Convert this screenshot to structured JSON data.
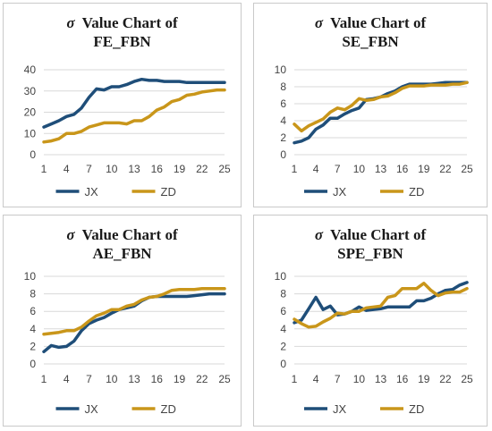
{
  "colors": {
    "JX": "#1f4e79",
    "ZD": "#c9961a",
    "grid": "#d9d9d9"
  },
  "chart_data": [
    {
      "type": "line",
      "title_prefix": "σ",
      "title_line1": "Value Chart of",
      "title_line2": "FE_FBN",
      "x_ticks": [
        "1",
        "4",
        "7",
        "10",
        "13",
        "16",
        "19",
        "22",
        "25"
      ],
      "y_ticks": [
        "0",
        "10",
        "20",
        "30",
        "40"
      ],
      "ylim": [
        0,
        40
      ],
      "xlim": [
        1,
        25
      ],
      "series": [
        {
          "name": "JX",
          "x": [
            1,
            2,
            3,
            4,
            5,
            6,
            7,
            8,
            9,
            10,
            11,
            12,
            13,
            14,
            15,
            16,
            17,
            18,
            19,
            20,
            21,
            22,
            23,
            24,
            25
          ],
          "values": [
            13,
            14.5,
            16,
            18,
            19,
            22,
            27,
            31,
            30.5,
            32,
            32,
            33,
            34.5,
            35.5,
            35,
            35,
            34.5,
            34.5,
            34.5,
            34,
            34,
            34,
            34,
            34,
            34
          ]
        },
        {
          "name": "ZD",
          "x": [
            1,
            2,
            3,
            4,
            5,
            6,
            7,
            8,
            9,
            10,
            11,
            12,
            13,
            14,
            15,
            16,
            17,
            18,
            19,
            20,
            21,
            22,
            23,
            24,
            25
          ],
          "values": [
            6,
            6.5,
            7.5,
            10,
            10,
            11,
            13,
            14,
            15,
            15,
            15,
            14.5,
            16,
            16,
            18,
            21,
            22.5,
            25,
            26,
            28,
            28.5,
            29.5,
            30,
            30.5,
            30.5
          ]
        }
      ],
      "legend": [
        "JX",
        "ZD"
      ]
    },
    {
      "type": "line",
      "title_prefix": "σ",
      "title_line1": "Value Chart of",
      "title_line2": "SE_FBN",
      "x_ticks": [
        "1",
        "4",
        "7",
        "10",
        "13",
        "16",
        "19",
        "22",
        "25"
      ],
      "y_ticks": [
        "0",
        "2",
        "4",
        "6",
        "8",
        "10"
      ],
      "ylim": [
        0,
        10
      ],
      "xlim": [
        1,
        25
      ],
      "series": [
        {
          "name": "JX",
          "x": [
            1,
            2,
            3,
            4,
            5,
            6,
            7,
            8,
            9,
            10,
            11,
            12,
            13,
            14,
            15,
            16,
            17,
            18,
            19,
            20,
            21,
            22,
            23,
            24,
            25
          ],
          "values": [
            1.4,
            1.6,
            2,
            3,
            3.5,
            4.3,
            4.3,
            4.8,
            5.2,
            5.5,
            6.5,
            6.6,
            6.8,
            7.2,
            7.5,
            8,
            8.3,
            8.3,
            8.3,
            8.3,
            8.4,
            8.5,
            8.5,
            8.5,
            8.5
          ]
        },
        {
          "name": "ZD",
          "x": [
            1,
            2,
            3,
            4,
            5,
            6,
            7,
            8,
            9,
            10,
            11,
            12,
            13,
            14,
            15,
            16,
            17,
            18,
            19,
            20,
            21,
            22,
            23,
            24,
            25
          ],
          "values": [
            3.6,
            2.8,
            3.4,
            3.8,
            4.2,
            5,
            5.5,
            5.3,
            5.8,
            6.6,
            6.4,
            6.5,
            6.8,
            6.9,
            7.3,
            7.8,
            8.1,
            8.1,
            8.1,
            8.2,
            8.2,
            8.2,
            8.3,
            8.3,
            8.5
          ]
        }
      ],
      "legend": [
        "JX",
        "ZD"
      ]
    },
    {
      "type": "line",
      "title_prefix": "σ",
      "title_line1": "Value Chart of",
      "title_line2": "AE_FBN",
      "x_ticks": [
        "1",
        "4",
        "7",
        "10",
        "13",
        "16",
        "19",
        "22",
        "25"
      ],
      "y_ticks": [
        "0",
        "2",
        "4",
        "6",
        "8",
        "10"
      ],
      "ylim": [
        0,
        10
      ],
      "xlim": [
        1,
        25
      ],
      "series": [
        {
          "name": "JX",
          "x": [
            1,
            2,
            3,
            4,
            5,
            6,
            7,
            8,
            9,
            10,
            11,
            12,
            13,
            14,
            15,
            16,
            17,
            18,
            19,
            20,
            21,
            22,
            23,
            24,
            25
          ],
          "values": [
            1.4,
            2.1,
            1.9,
            2,
            2.6,
            3.8,
            4.6,
            5,
            5.3,
            5.8,
            6.2,
            6.4,
            6.6,
            7.2,
            7.6,
            7.7,
            7.7,
            7.7,
            7.7,
            7.7,
            7.8,
            7.9,
            8,
            8,
            8
          ]
        },
        {
          "name": "ZD",
          "x": [
            1,
            2,
            3,
            4,
            5,
            6,
            7,
            8,
            9,
            10,
            11,
            12,
            13,
            14,
            15,
            16,
            17,
            18,
            19,
            20,
            21,
            22,
            23,
            24,
            25
          ],
          "values": [
            3.4,
            3.5,
            3.6,
            3.8,
            3.8,
            4.2,
            4.9,
            5.5,
            5.8,
            6.2,
            6.2,
            6.6,
            6.8,
            7.3,
            7.6,
            7.7,
            8,
            8.4,
            8.5,
            8.5,
            8.5,
            8.6,
            8.6,
            8.6,
            8.6
          ]
        }
      ],
      "legend": [
        "JX",
        "ZD"
      ]
    },
    {
      "type": "line",
      "title_prefix": "σ",
      "title_line1": "Value Chart of",
      "title_line2": "SPE_FBN",
      "x_ticks": [
        "1",
        "4",
        "7",
        "10",
        "13",
        "16",
        "19",
        "22",
        "25"
      ],
      "y_ticks": [
        "0",
        "2",
        "4",
        "6",
        "8",
        "10"
      ],
      "ylim": [
        0,
        10
      ],
      "xlim": [
        1,
        25
      ],
      "series": [
        {
          "name": "JX",
          "x": [
            1,
            2,
            3,
            4,
            5,
            6,
            7,
            8,
            9,
            10,
            11,
            12,
            13,
            14,
            15,
            16,
            17,
            18,
            19,
            20,
            21,
            22,
            23,
            24,
            25
          ],
          "values": [
            4.7,
            5,
            6.3,
            7.6,
            6.2,
            6.6,
            5.6,
            5.7,
            6,
            6.5,
            6.1,
            6.2,
            6.3,
            6.5,
            6.5,
            6.5,
            6.5,
            7.2,
            7.2,
            7.5,
            8,
            8.4,
            8.5,
            9,
            9.3
          ]
        },
        {
          "name": "ZD",
          "x": [
            1,
            2,
            3,
            4,
            5,
            6,
            7,
            8,
            9,
            10,
            11,
            12,
            13,
            14,
            15,
            16,
            17,
            18,
            19,
            20,
            21,
            22,
            23,
            24,
            25
          ],
          "values": [
            5.1,
            4.6,
            4.2,
            4.3,
            4.8,
            5.2,
            5.8,
            5.7,
            6,
            6,
            6.4,
            6.5,
            6.6,
            7.6,
            7.8,
            8.6,
            8.6,
            8.6,
            9.2,
            8.4,
            7.8,
            8.1,
            8.2,
            8.2,
            8.6
          ]
        }
      ],
      "legend": [
        "JX",
        "ZD"
      ]
    }
  ]
}
